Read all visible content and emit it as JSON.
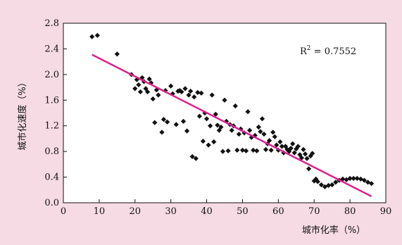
{
  "chart_data": {
    "type": "scatter",
    "xlabel": "城市化率（%）",
    "ylabel": "城市化速度（%）",
    "xlim": [
      0,
      90
    ],
    "ylim": [
      0,
      2.8
    ],
    "xticks": [
      "0",
      "10",
      "20",
      "30",
      "40",
      "50",
      "60",
      "70",
      "80",
      "90"
    ],
    "yticks": [
      "0.0",
      "0.4",
      "0.8",
      "1.2",
      "1.6",
      "2.0",
      "2.4",
      "2.8"
    ],
    "grid": false,
    "annotation": {
      "base": "R",
      "sup": "2",
      "rest": " = 0.7552"
    },
    "colors": {
      "points": "#111111",
      "trendline": "#e0218a",
      "background": "#f6dbe5",
      "plot_bg": "#ffffff"
    },
    "trendline": {
      "x": [
        8,
        86
      ],
      "y": [
        2.31,
        0.1
      ]
    },
    "points": [
      [
        8.0,
        2.59
      ],
      [
        9.5,
        2.61
      ],
      [
        15.0,
        2.32
      ],
      [
        19.0,
        2.0
      ],
      [
        20.0,
        1.78
      ],
      [
        20.5,
        1.92
      ],
      [
        21.0,
        1.84
      ],
      [
        21.5,
        1.73
      ],
      [
        22.0,
        1.95
      ],
      [
        22.5,
        1.89
      ],
      [
        23.0,
        1.78
      ],
      [
        23.5,
        1.73
      ],
      [
        24.0,
        1.93
      ],
      [
        24.5,
        1.87
      ],
      [
        25.0,
        1.62
      ],
      [
        25.5,
        1.25
      ],
      [
        26.0,
        1.76
      ],
      [
        26.5,
        1.68
      ],
      [
        27.5,
        1.1
      ],
      [
        28.0,
        1.3
      ],
      [
        28.5,
        1.75
      ],
      [
        29.0,
        1.26
      ],
      [
        30.0,
        1.82
      ],
      [
        30.5,
        1.7
      ],
      [
        31.5,
        1.22
      ],
      [
        32.0,
        1.74
      ],
      [
        32.5,
        1.75
      ],
      [
        33.0,
        1.73
      ],
      [
        33.5,
        1.27
      ],
      [
        34.0,
        1.78
      ],
      [
        34.5,
        1.12
      ],
      [
        35.0,
        1.68
      ],
      [
        35.5,
        1.74
      ],
      [
        36.0,
        0.72
      ],
      [
        36.5,
        1.65
      ],
      [
        37.0,
        0.69
      ],
      [
        37.5,
        1.72
      ],
      [
        38.0,
        1.35
      ],
      [
        38.5,
        1.71
      ],
      [
        39.0,
        0.96
      ],
      [
        39.5,
        1.4
      ],
      [
        40.0,
        1.31
      ],
      [
        40.5,
        0.9
      ],
      [
        41.0,
        1.2
      ],
      [
        41.5,
        1.68
      ],
      [
        42.0,
        0.95
      ],
      [
        42.5,
        1.38
      ],
      [
        43.0,
        1.21
      ],
      [
        43.5,
        1.13
      ],
      [
        44.0,
        1.18
      ],
      [
        44.5,
        0.8
      ],
      [
        45.0,
        1.6
      ],
      [
        45.5,
        1.27
      ],
      [
        46.0,
        0.81
      ],
      [
        46.5,
        1.22
      ],
      [
        47.0,
        1.13
      ],
      [
        47.5,
        1.2
      ],
      [
        48.0,
        1.51
      ],
      [
        48.5,
        0.82
      ],
      [
        49.0,
        1.07
      ],
      [
        49.5,
        1.15
      ],
      [
        50.0,
        0.82
      ],
      [
        50.5,
        1.09
      ],
      [
        51.0,
        0.81
      ],
      [
        51.5,
        1.42
      ],
      [
        52.0,
        1.13
      ],
      [
        52.5,
        1.02
      ],
      [
        53.0,
        0.82
      ],
      [
        53.5,
        1.05
      ],
      [
        54.0,
        0.81
      ],
      [
        54.5,
        1.18
      ],
      [
        55.0,
        1.11
      ],
      [
        55.5,
        1.31
      ],
      [
        56.0,
        1.07
      ],
      [
        56.5,
        0.83
      ],
      [
        57.0,
        0.92
      ],
      [
        57.5,
        0.97
      ],
      [
        58.0,
        0.82
      ],
      [
        58.5,
        1.1
      ],
      [
        59.0,
        1.03
      ],
      [
        59.5,
        0.9
      ],
      [
        60.0,
        0.82
      ],
      [
        60.5,
        0.95
      ],
      [
        61.0,
        0.88
      ],
      [
        61.5,
        0.78
      ],
      [
        62.0,
        0.88
      ],
      [
        62.5,
        0.83
      ],
      [
        63.0,
        0.8
      ],
      [
        63.5,
        0.85
      ],
      [
        64.0,
        0.92
      ],
      [
        64.5,
        0.78
      ],
      [
        65.0,
        0.84
      ],
      [
        65.5,
        0.88
      ],
      [
        66.0,
        0.75
      ],
      [
        66.5,
        0.7
      ],
      [
        67.0,
        0.83
      ],
      [
        67.5,
        0.76
      ],
      [
        68.0,
        0.69
      ],
      [
        68.5,
        0.53
      ],
      [
        69.0,
        0.73
      ],
      [
        69.5,
        0.77
      ],
      [
        70.0,
        0.34
      ],
      [
        70.5,
        0.37
      ],
      [
        71.0,
        0.33
      ],
      [
        72.0,
        0.28
      ],
      [
        73.0,
        0.25
      ],
      [
        74.0,
        0.27
      ],
      [
        75.0,
        0.28
      ],
      [
        76.0,
        0.32
      ],
      [
        77.0,
        0.35
      ],
      [
        78.0,
        0.37
      ],
      [
        79.0,
        0.36
      ],
      [
        80.0,
        0.38
      ],
      [
        81.0,
        0.38
      ],
      [
        82.0,
        0.38
      ],
      [
        83.0,
        0.37
      ],
      [
        84.0,
        0.35
      ],
      [
        85.0,
        0.32
      ],
      [
        86.0,
        0.3
      ]
    ]
  }
}
